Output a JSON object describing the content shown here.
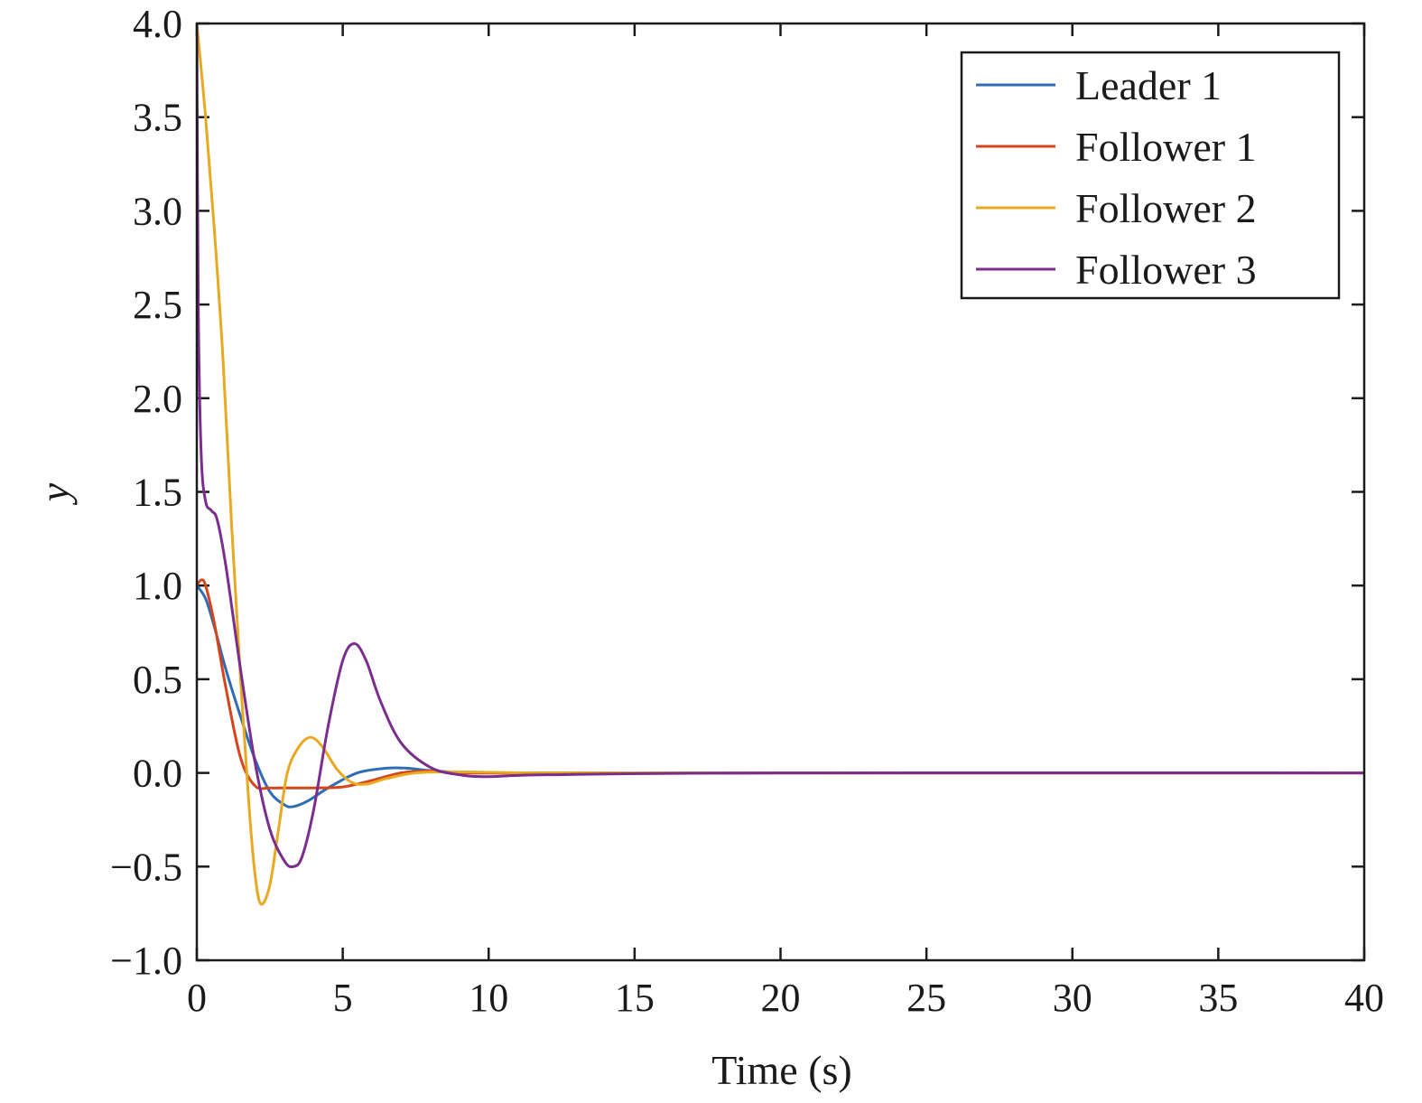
{
  "chart_data": {
    "type": "line",
    "title": "",
    "xlabel": "Time (s)",
    "ylabel": "y",
    "xlim": [
      0,
      40
    ],
    "ylim": [
      -1.0,
      4.0
    ],
    "xticks": [
      0,
      5,
      10,
      15,
      20,
      25,
      30,
      35,
      40
    ],
    "xtick_labels": [
      "0",
      "5",
      "10",
      "15",
      "20",
      "25",
      "30",
      "35",
      "40"
    ],
    "yticks": [
      -1.0,
      -0.5,
      0.0,
      0.5,
      1.0,
      1.5,
      2.0,
      2.5,
      3.0,
      3.5,
      4.0
    ],
    "ytick_labels": [
      "−1.0",
      "−0.5",
      "0.0",
      "0.5",
      "1.0",
      "1.5",
      "2.0",
      "2.5",
      "3.0",
      "3.5",
      "4.0"
    ],
    "grid": false,
    "legend_position": "top-right",
    "series": [
      {
        "name": "Leader 1",
        "color": "#2e6db4",
        "x": [
          0,
          0.3,
          0.6,
          1.0,
          1.5,
          2.0,
          2.5,
          3.0,
          3.3,
          3.8,
          4.5,
          5.5,
          6.5,
          7.2,
          8.0,
          9.0,
          10.0,
          12.0,
          20.0,
          40.0
        ],
        "y": [
          1.0,
          0.93,
          0.78,
          0.55,
          0.3,
          0.07,
          -0.1,
          -0.17,
          -0.18,
          -0.15,
          -0.08,
          0.0,
          0.025,
          0.025,
          0.012,
          0.003,
          0.0,
          0.0,
          0.0,
          0.0
        ]
      },
      {
        "name": "Follower 1",
        "color": "#d5451b",
        "x": [
          0,
          0.15,
          0.3,
          0.6,
          1.0,
          1.5,
          2.0,
          2.5,
          3.0,
          4.0,
          5.0,
          6.0,
          7.0,
          8.0,
          9.0,
          12.0,
          20.0,
          40.0
        ],
        "y": [
          1.0,
          1.03,
          1.0,
          0.8,
          0.45,
          0.08,
          -0.07,
          -0.08,
          -0.08,
          -0.08,
          -0.075,
          -0.04,
          0.0,
          0.01,
          0.0,
          0.0,
          0.0,
          0.0
        ]
      },
      {
        "name": "Follower 2",
        "color": "#e8a922",
        "x": [
          0,
          0.3,
          0.6,
          0.9,
          1.2,
          1.5,
          1.8,
          2.0,
          2.2,
          2.5,
          2.8,
          3.1,
          3.5,
          3.9,
          4.3,
          4.8,
          5.3,
          5.8,
          6.5,
          7.5,
          9.0,
          12.0,
          20.0,
          40.0
        ],
        "y": [
          4.0,
          3.5,
          2.9,
          2.2,
          1.3,
          0.5,
          -0.2,
          -0.55,
          -0.7,
          -0.6,
          -0.3,
          0.0,
          0.14,
          0.19,
          0.14,
          0.02,
          -0.05,
          -0.06,
          -0.03,
          0.0,
          0.005,
          0.0,
          0.0,
          0.0
        ]
      },
      {
        "name": "Follower 3",
        "color": "#7b2d8e",
        "x": [
          0,
          0.05,
          0.15,
          0.3,
          0.5,
          0.7,
          1.0,
          1.5,
          2.0,
          2.5,
          3.0,
          3.3,
          3.6,
          4.0,
          4.5,
          5.0,
          5.4,
          5.8,
          6.3,
          7.0,
          8.0,
          9.0,
          10.0,
          12.0,
          20.0,
          40.0
        ],
        "y": [
          4.0,
          2.5,
          1.7,
          1.45,
          1.4,
          1.35,
          1.1,
          0.55,
          0.05,
          -0.3,
          -0.47,
          -0.5,
          -0.45,
          -0.2,
          0.25,
          0.6,
          0.69,
          0.6,
          0.38,
          0.16,
          0.03,
          -0.01,
          -0.02,
          -0.01,
          0.0,
          0.0
        ]
      }
    ]
  }
}
